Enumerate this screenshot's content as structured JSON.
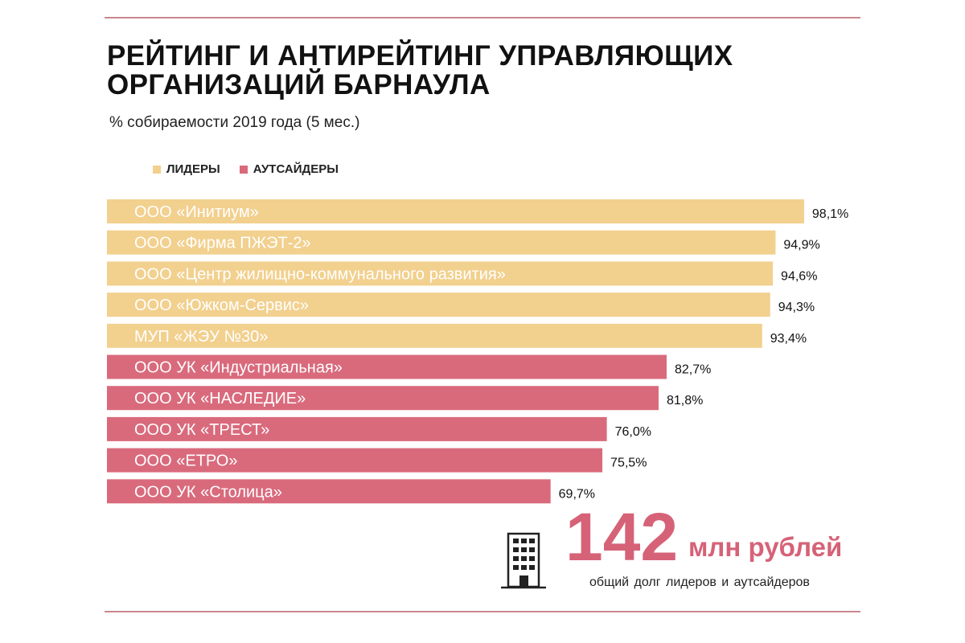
{
  "title_lines": [
    "РЕЙТИНГ И АНТИРЕЙТИНГ УПРАВЛЯЮЩИХ",
    "ОРГАНИЗАЦИЙ БАРНАУЛА"
  ],
  "subtitle": "% собираемости 2019 года (5 мес.)",
  "legend": [
    {
      "label": "ЛИДЕРЫ",
      "color": "#f2d08e"
    },
    {
      "label": "АУТСАЙДЕРЫ",
      "color": "#d96a7c"
    }
  ],
  "colors": {
    "leaders": "#f2d08e",
    "outsiders": "#d96a7c",
    "rule": "#c9878e",
    "accent_text": "#d66278"
  },
  "chart_data": {
    "type": "bar",
    "orientation": "horizontal",
    "categories": [
      "ООО «Инитиум»",
      "ООО «Фирма ПЖЭТ-2»",
      "ООО «Центр жилищно-коммунального развития»",
      "ООО «Южком-Сервис»",
      "МУП «ЖЭУ №30»",
      "ООО УК «Индустриальная»",
      "ООО УК «НАСЛЕДИЕ»",
      "ООО УК «ТРЕСТ»",
      "ООО «ЕТРО»",
      "ООО УК «Столица»"
    ],
    "values": [
      98.1,
      94.9,
      94.6,
      94.3,
      93.4,
      82.7,
      81.8,
      76.0,
      75.5,
      69.7
    ],
    "value_labels": [
      "98,1%",
      "94,9%",
      "94,6%",
      "94,3%",
      "93,4%",
      "82,7%",
      "81,8%",
      "76,0%",
      "75,5%",
      "69,7%"
    ],
    "groups": [
      "leaders",
      "leaders",
      "leaders",
      "leaders",
      "leaders",
      "outsiders",
      "outsiders",
      "outsiders",
      "outsiders",
      "outsiders"
    ],
    "xlim": [
      20,
      100
    ],
    "grid": false,
    "legend_position": "top-left"
  },
  "summary": {
    "number": "142",
    "unit": "млн рублей",
    "caption": "общий долг лидеров и аутсайдеров",
    "icon": "building-icon"
  }
}
